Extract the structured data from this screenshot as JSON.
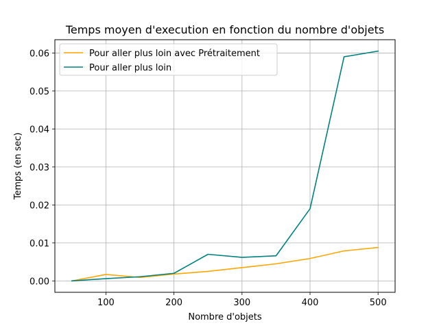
{
  "chart_data": {
    "type": "line",
    "title": "Temps moyen d'execution en fonction du nombre d'objets",
    "xlabel": "Nombre d'objets",
    "ylabel": "Temps (en sec)",
    "xlim": [
      25,
      525
    ],
    "ylim": [
      -0.003,
      0.0635
    ],
    "x_ticks": [
      100,
      200,
      300,
      400,
      500
    ],
    "y_ticks": [
      0.0,
      0.01,
      0.02,
      0.03,
      0.04,
      0.05,
      0.06
    ],
    "y_tick_labels": [
      "0.00",
      "0.01",
      "0.02",
      "0.03",
      "0.04",
      "0.05",
      "0.06"
    ],
    "grid": true,
    "legend_position": "top-left",
    "x": [
      50,
      100,
      150,
      200,
      250,
      300,
      350,
      400,
      450,
      500
    ],
    "series": [
      {
        "name": "Pour aller plus loin avec Prétraitement",
        "color": "#ffa500",
        "values": [
          0.0,
          0.0017,
          0.0009,
          0.0018,
          0.0025,
          0.0035,
          0.0045,
          0.0059,
          0.0079,
          0.0088
        ]
      },
      {
        "name": "Pour aller plus loin",
        "color": "#008080",
        "values": [
          0.0,
          0.0006,
          0.0011,
          0.002,
          0.007,
          0.0062,
          0.0066,
          0.019,
          0.059,
          0.0605
        ]
      }
    ]
  }
}
